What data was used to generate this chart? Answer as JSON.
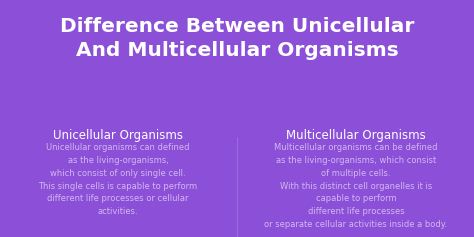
{
  "bg_color": "#8b4fd8",
  "title_line1": "Difference Between Unicellular",
  "title_line2": "And Multicellular Organisms",
  "title_color": "#ffffff",
  "title_fontsize": 14.5,
  "left_heading": "Unicellular Organisms",
  "right_heading": "Multicellular Organisms",
  "heading_color": "#ffffff",
  "heading_fontsize": 8.5,
  "left_body": "Unicellular organisms can defined\nas the living-organisms,\nwhich consist of only single cell.\nThis single cells is capable to perform\ndifferent life processes or cellular\nactivities.",
  "right_body": "Multicellular organisms can be defined\nas the living-organisms, which consist\nof multiple cells.\nWith this distinct cell organelles it is\ncapable to perform\ndifferent life processes\nor separate cellular activities inside a body.",
  "body_color": "#d4b8f0",
  "body_fontsize": 6.0,
  "divider_color": "#aa88dd"
}
